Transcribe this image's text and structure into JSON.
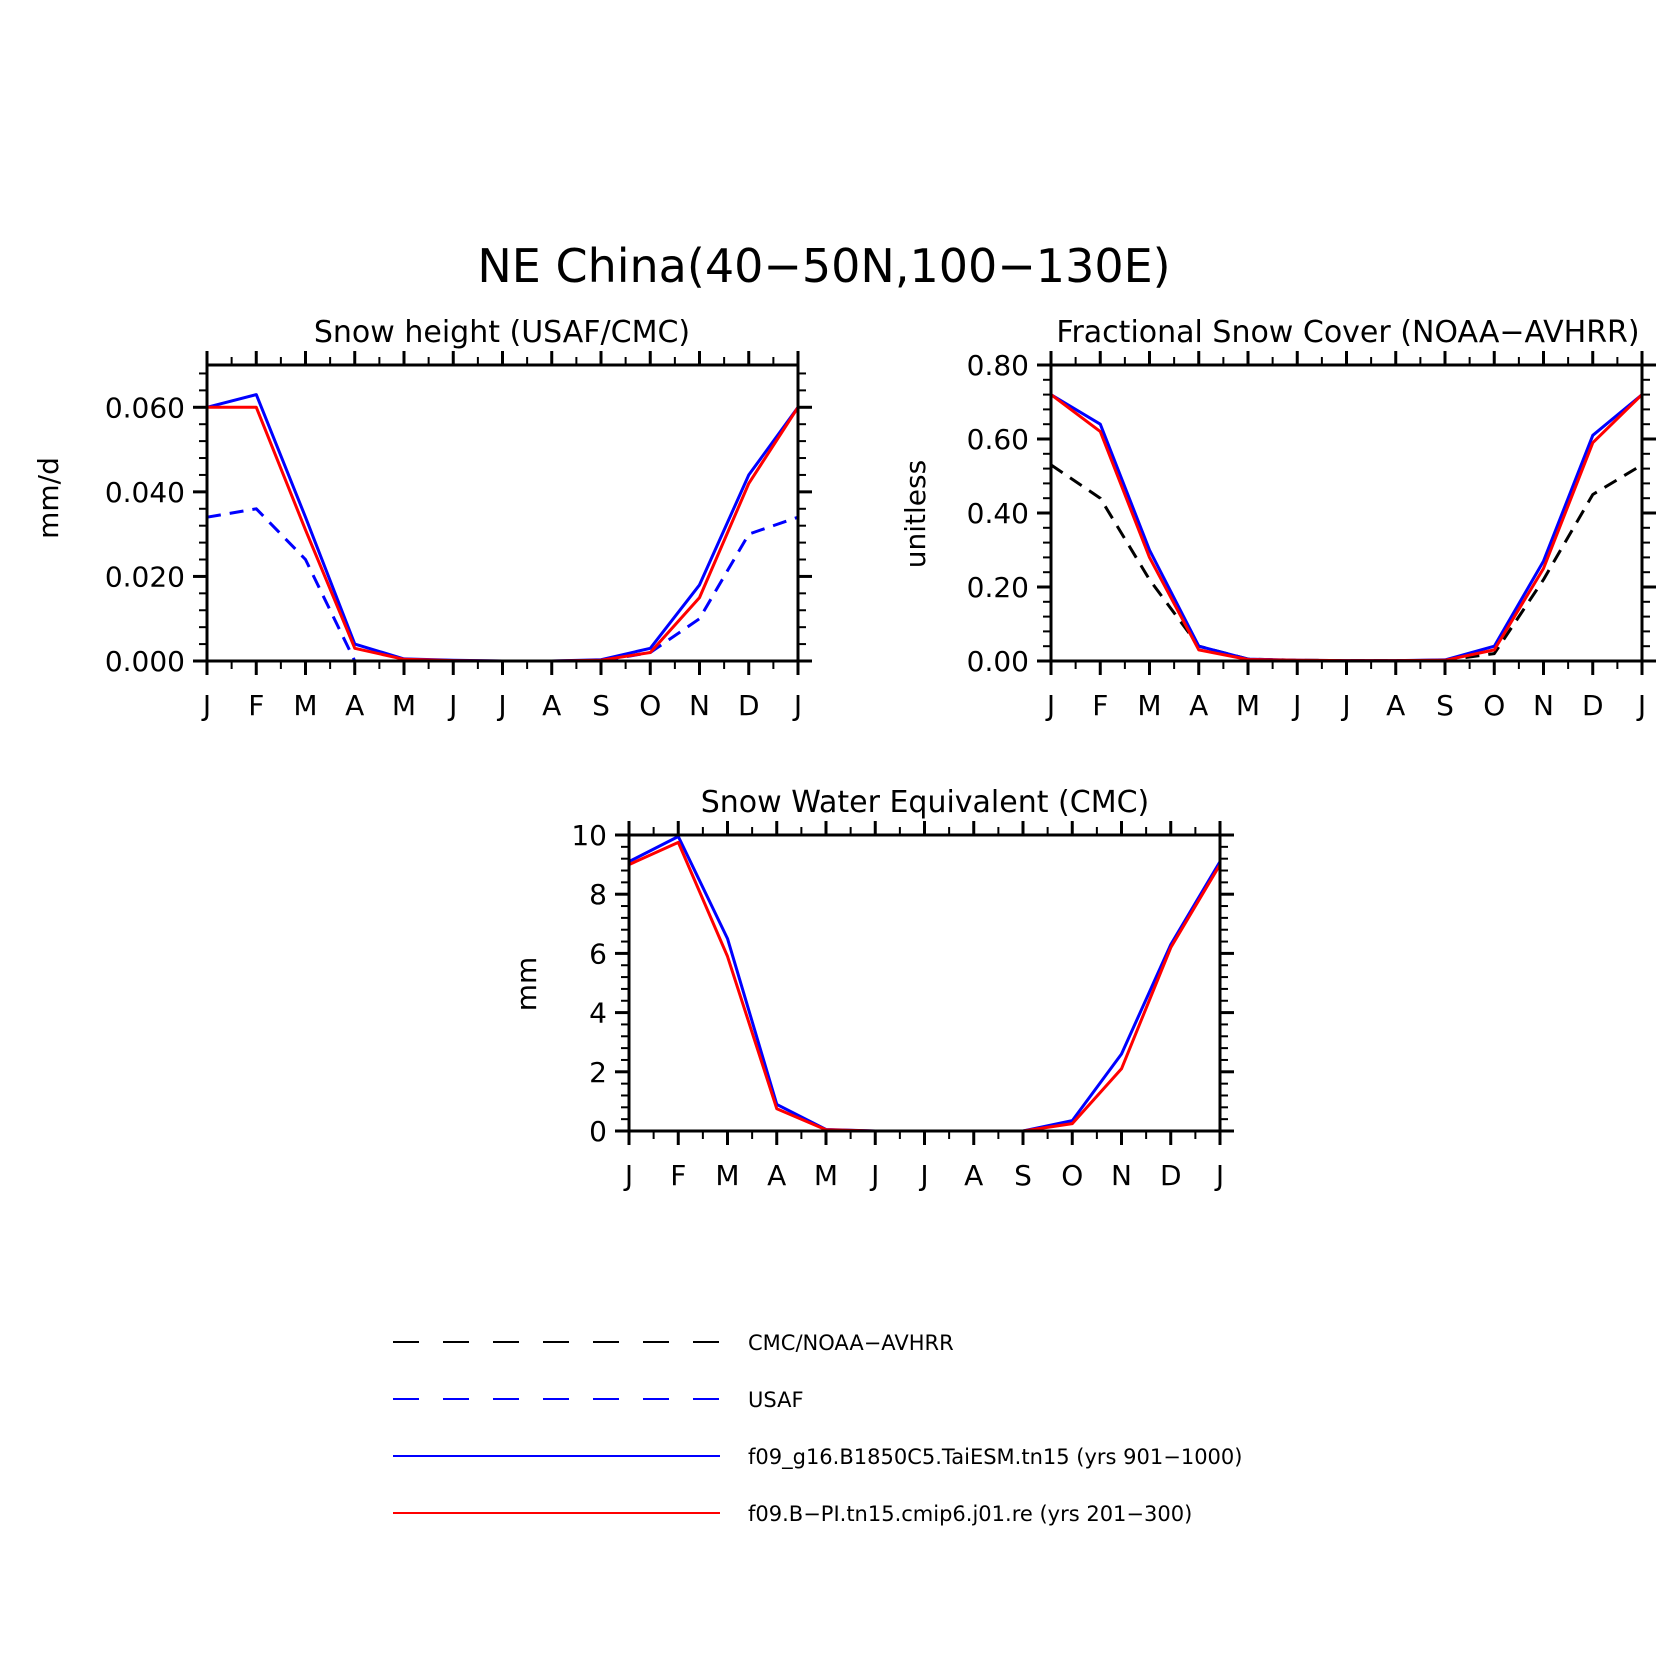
{
  "main_title": "NE China(40−50N,100−130E)",
  "legend": [
    {
      "label": "CMC/NOAA−AVHRR",
      "color": "#000000",
      "dash": true
    },
    {
      "label": "USAF",
      "color": "#0000ff",
      "dash": true
    },
    {
      "label": "f09_g16.B1850C5.TaiESM.tn15 (yrs 901−1000)",
      "color": "#0000ff",
      "dash": false
    },
    {
      "label": "f09.B−PI.tn15.cmip6.j01.re (yrs 201−300)",
      "color": "#ff0000",
      "dash": false
    }
  ],
  "chart_data": [
    {
      "type": "line",
      "title": "Snow height (USAF/CMC)",
      "ylabel": "mm/d",
      "categories": [
        "J",
        "F",
        "M",
        "A",
        "M",
        "J",
        "J",
        "A",
        "S",
        "O",
        "N",
        "D",
        "J"
      ],
      "ylim": [
        0,
        0.07
      ],
      "yticks": [
        0,
        0.02,
        0.04,
        0.06
      ],
      "ytick_labels": [
        "0.000",
        "0.020",
        "0.040",
        "0.060"
      ],
      "series": [
        {
          "name": "USAF",
          "color": "#0000ff",
          "dash": true,
          "values": [
            0.034,
            0.036,
            0.024,
            0.0,
            0.0,
            0.0,
            0.0,
            0.0,
            0.0,
            0.002,
            0.01,
            0.03,
            0.034
          ]
        },
        {
          "name": "f09_g16.B1850C5.TaiESM.tn15 (yrs 901−1000)",
          "color": "#0000ff",
          "dash": false,
          "values": [
            0.06,
            0.063,
            0.034,
            0.004,
            0.0005,
            0.0002,
            0.0,
            0.0,
            0.0003,
            0.003,
            0.018,
            0.044,
            0.06
          ]
        },
        {
          "name": "f09.B−PI.tn15.cmip6.j01.re (yrs 201−300)",
          "color": "#ff0000",
          "dash": false,
          "values": [
            0.06,
            0.06,
            0.031,
            0.003,
            0.0004,
            0.0001,
            0.0,
            0.0,
            0.0002,
            0.002,
            0.015,
            0.042,
            0.06
          ]
        }
      ]
    },
    {
      "type": "line",
      "title": "Fractional Snow Cover (NOAA−AVHRR)",
      "ylabel": "unitless",
      "categories": [
        "J",
        "F",
        "M",
        "A",
        "M",
        "J",
        "J",
        "A",
        "S",
        "O",
        "N",
        "D",
        "J"
      ],
      "ylim": [
        0,
        0.8
      ],
      "yticks": [
        0,
        0.2,
        0.4,
        0.6,
        0.8
      ],
      "ytick_labels": [
        "0.00",
        "0.20",
        "0.40",
        "0.60",
        "0.80"
      ],
      "series": [
        {
          "name": "CMC/NOAA−AVHRR",
          "color": "#000000",
          "dash": true,
          "values": [
            0.53,
            0.44,
            0.22,
            0.04,
            0.005,
            0.002,
            0.001,
            0.001,
            0.002,
            0.02,
            0.22,
            0.45,
            0.53
          ]
        },
        {
          "name": "f09_g16.B1850C5.TaiESM.tn15 (yrs 901−1000)",
          "color": "#0000ff",
          "dash": false,
          "values": [
            0.72,
            0.64,
            0.3,
            0.04,
            0.005,
            0.002,
            0.001,
            0.001,
            0.003,
            0.04,
            0.27,
            0.61,
            0.72
          ]
        },
        {
          "name": "f09.B−PI.tn15.cmip6.j01.re (yrs 201−300)",
          "color": "#ff0000",
          "dash": false,
          "values": [
            0.72,
            0.62,
            0.28,
            0.03,
            0.004,
            0.002,
            0.001,
            0.001,
            0.002,
            0.03,
            0.25,
            0.59,
            0.72
          ]
        }
      ]
    },
    {
      "type": "line",
      "title": "Snow Water Equivalent (CMC)",
      "ylabel": "mm",
      "categories": [
        "J",
        "F",
        "M",
        "A",
        "M",
        "J",
        "J",
        "A",
        "S",
        "O",
        "N",
        "D",
        "J"
      ],
      "ylim": [
        0,
        10
      ],
      "yticks": [
        0,
        2,
        4,
        6,
        8,
        10
      ],
      "ytick_labels": [
        "0",
        "2",
        "4",
        "6",
        "8",
        "10"
      ],
      "series": [
        {
          "name": "CMC/NOAA−AVHRR",
          "color": "#000000",
          "dash": true,
          "values": [
            0,
            0,
            0,
            0,
            0,
            0,
            0,
            0,
            0,
            0,
            0,
            0,
            0
          ]
        },
        {
          "name": "f09_g16.B1850C5.TaiESM.tn15 (yrs 901−1000)",
          "color": "#0000ff",
          "dash": false,
          "values": [
            9.1,
            9.95,
            6.5,
            0.9,
            0.05,
            0.0,
            0.0,
            0.0,
            0.0,
            0.35,
            2.6,
            6.3,
            9.1
          ]
        },
        {
          "name": "f09.B−PI.tn15.cmip6.j01.re (yrs 201−300)",
          "color": "#ff0000",
          "dash": false,
          "values": [
            9.0,
            9.75,
            5.9,
            0.75,
            0.04,
            0.0,
            0.0,
            0.0,
            0.0,
            0.25,
            2.1,
            6.2,
            9.0
          ]
        }
      ]
    }
  ]
}
